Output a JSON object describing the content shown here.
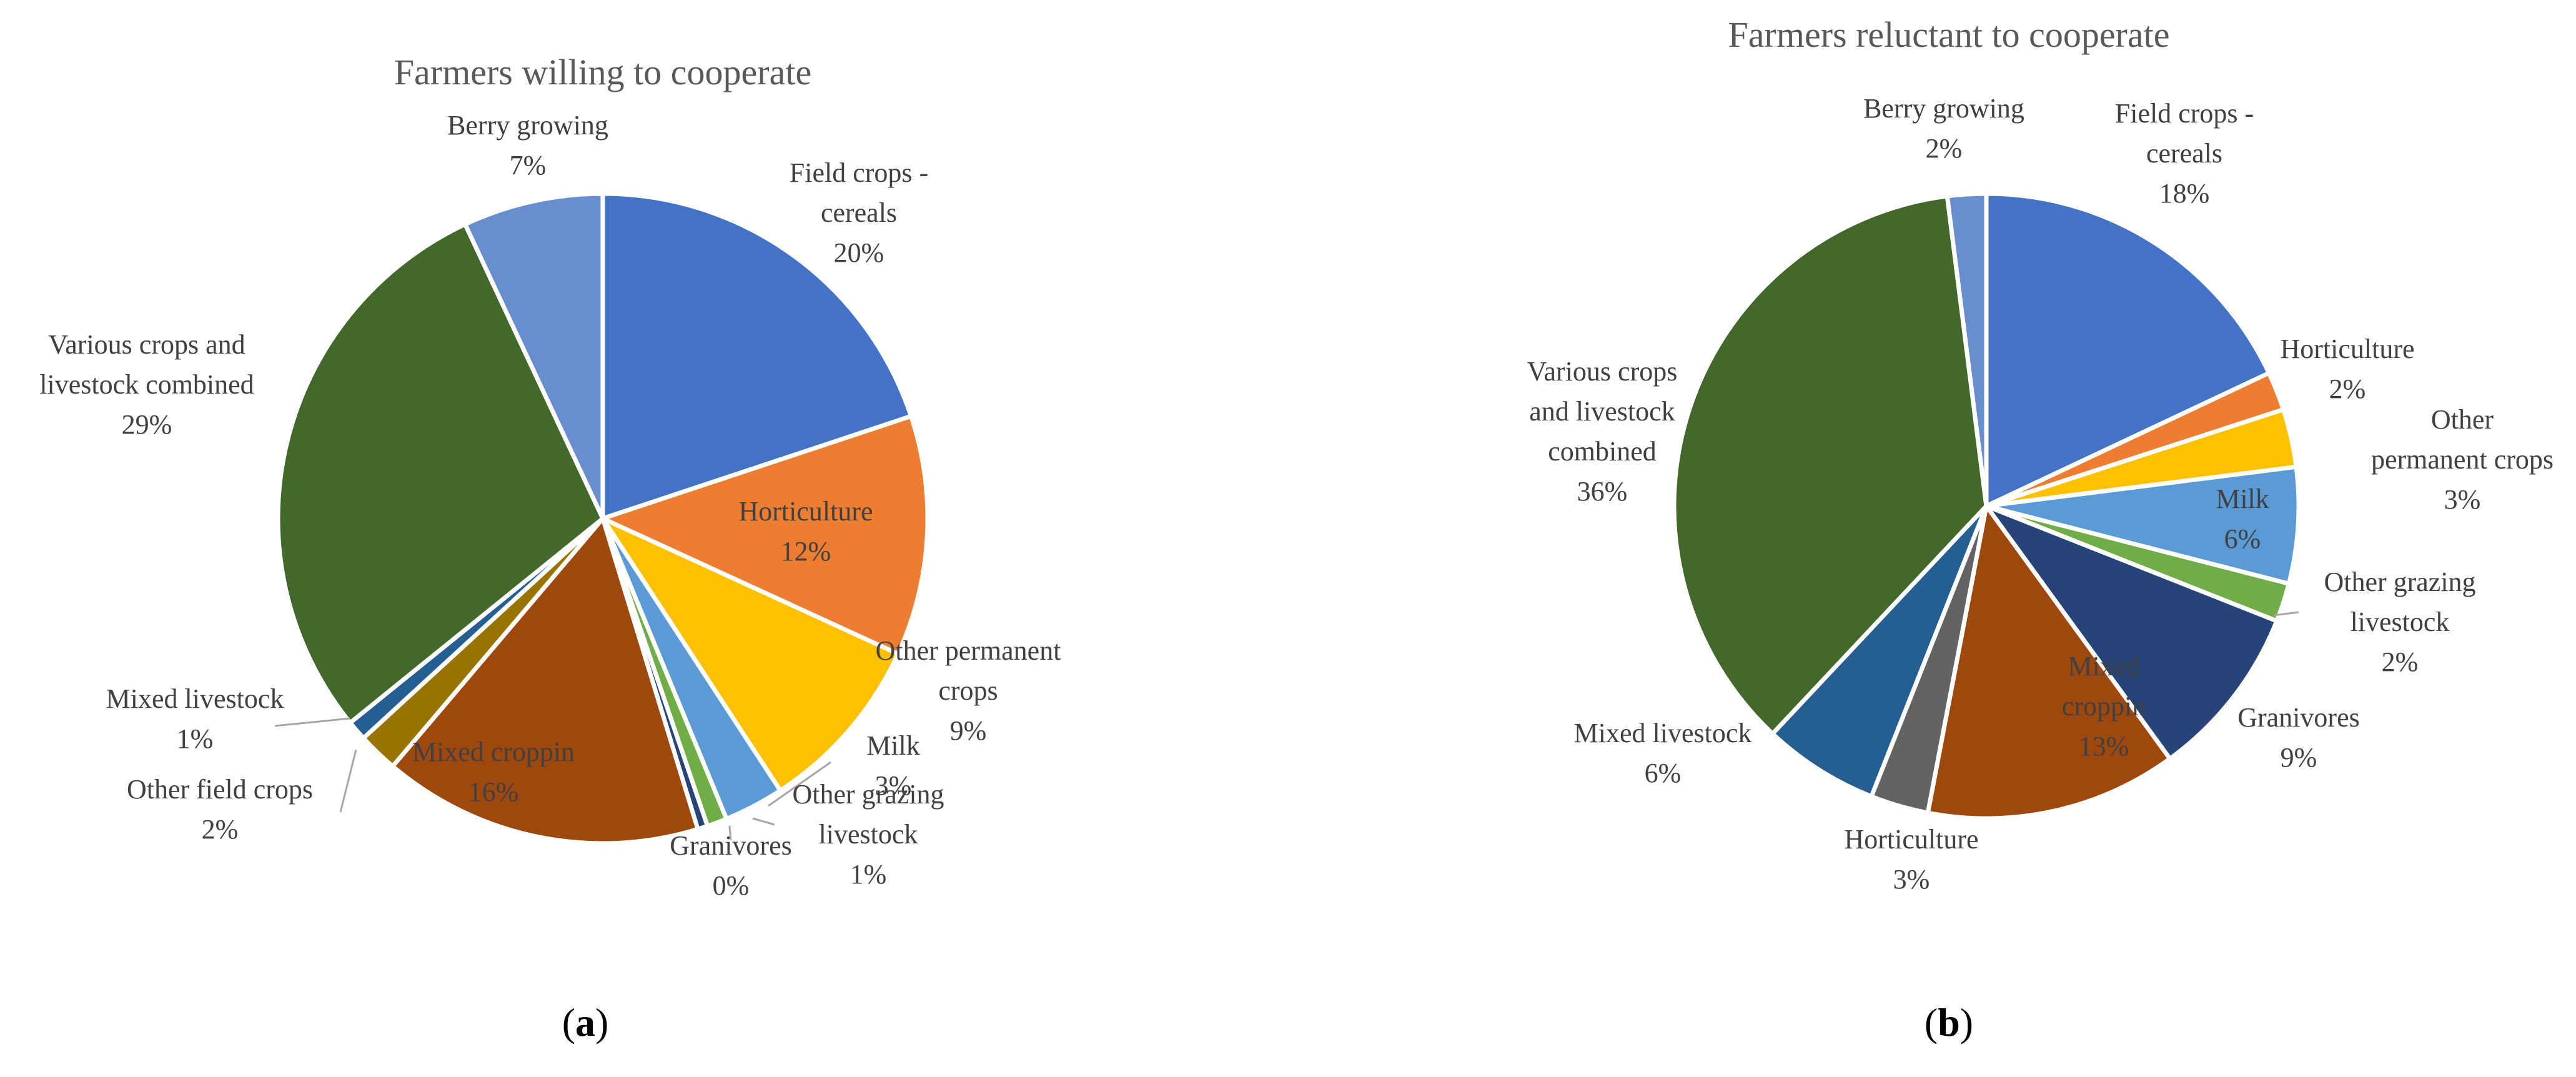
{
  "chart_data": [
    {
      "type": "pie",
      "title": "Farmers willing to cooperate",
      "panel_label": "a",
      "slices": [
        {
          "name": "Field crops - cereals",
          "label_lines": [
            "Field crops -",
            "cereals"
          ],
          "value": 20,
          "value_label": "20%",
          "color": "#4472C4"
        },
        {
          "name": "Horticulture",
          "label_lines": [
            "Horticulture"
          ],
          "value": 12,
          "value_label": "12%",
          "color": "#ED7D31"
        },
        {
          "name": "Other permanent crops",
          "label_lines": [
            "Other permanent",
            "crops"
          ],
          "value": 9,
          "value_label": "9%",
          "color": "#FFC000"
        },
        {
          "name": "Milk",
          "label_lines": [
            "Milk"
          ],
          "value": 3,
          "value_label": "3%",
          "color": "#5B9BD5"
        },
        {
          "name": "Other grazing livestock",
          "label_lines": [
            "Other grazing",
            "livestock"
          ],
          "value": 1,
          "value_label": "1%",
          "color": "#70AD47"
        },
        {
          "name": "Granivores",
          "label_lines": [
            "Granivores"
          ],
          "value": 0,
          "value_label": "0%",
          "color": "#264478"
        },
        {
          "name": "Mixed croppin",
          "label_lines": [
            "Mixed croppin"
          ],
          "value": 16,
          "value_label": "16%",
          "color": "#9E480E"
        },
        {
          "name": "Other field crops",
          "label_lines": [
            "Other field crops"
          ],
          "value": 2,
          "value_label": "2%",
          "color": "#997300"
        },
        {
          "name": "Mixed livestock",
          "label_lines": [
            "Mixed livestock"
          ],
          "value": 1,
          "value_label": "1%",
          "color": "#255E91"
        },
        {
          "name": "Various crops and livestock combined",
          "label_lines": [
            "Various crops and",
            "livestock combined"
          ],
          "value": 29,
          "value_label": "29%",
          "color": "#43682B"
        },
        {
          "name": "Berry growing",
          "label_lines": [
            "Berry growing"
          ],
          "value": 7,
          "value_label": "7%",
          "color": "#698ED0"
        }
      ]
    },
    {
      "type": "pie",
      "title": "Farmers reluctant to cooperate",
      "panel_label": "b",
      "slices": [
        {
          "name": "Field crops - cereals",
          "label_lines": [
            "Field crops -",
            "cereals"
          ],
          "value": 18,
          "value_label": "18%",
          "color": "#4472C4"
        },
        {
          "name": "Horticulture",
          "label_lines": [
            "Horticulture"
          ],
          "value": 2,
          "value_label": "2%",
          "color": "#ED7D31"
        },
        {
          "name": "Other permanent crops",
          "label_lines": [
            "Other",
            "permanent crops"
          ],
          "value": 3,
          "value_label": "3%",
          "color": "#FFC000"
        },
        {
          "name": "Milk",
          "label_lines": [
            "Milk"
          ],
          "value": 6,
          "value_label": "6%",
          "color": "#5B9BD5"
        },
        {
          "name": "Other grazing livestock",
          "label_lines": [
            "Other grazing",
            "livestock"
          ],
          "value": 2,
          "value_label": "2%",
          "color": "#70AD47"
        },
        {
          "name": "Granivores",
          "label_lines": [
            "Granivores"
          ],
          "value": 9,
          "value_label": "9%",
          "color": "#264478"
        },
        {
          "name": "Mixed croppin",
          "label_lines": [
            "Mixed",
            "croppin"
          ],
          "value": 13,
          "value_label": "13%",
          "color": "#9E480E"
        },
        {
          "name": "Horticulture",
          "label_lines": [
            "Horticulture"
          ],
          "value": 3,
          "value_label": "3%",
          "color": "#636363"
        },
        {
          "name": "Mixed livestock",
          "label_lines": [
            "Mixed livestock"
          ],
          "value": 6,
          "value_label": "6%",
          "color": "#255E91"
        },
        {
          "name": "Various crops and livestock combined",
          "label_lines": [
            "Various crops",
            "and livestock",
            "combined"
          ],
          "value": 36,
          "value_label": "36%",
          "color": "#43682B"
        },
        {
          "name": "Berry growing",
          "label_lines": [
            "Berry growing"
          ],
          "value": 2,
          "value_label": "2%",
          "color": "#698ED0"
        }
      ]
    }
  ]
}
